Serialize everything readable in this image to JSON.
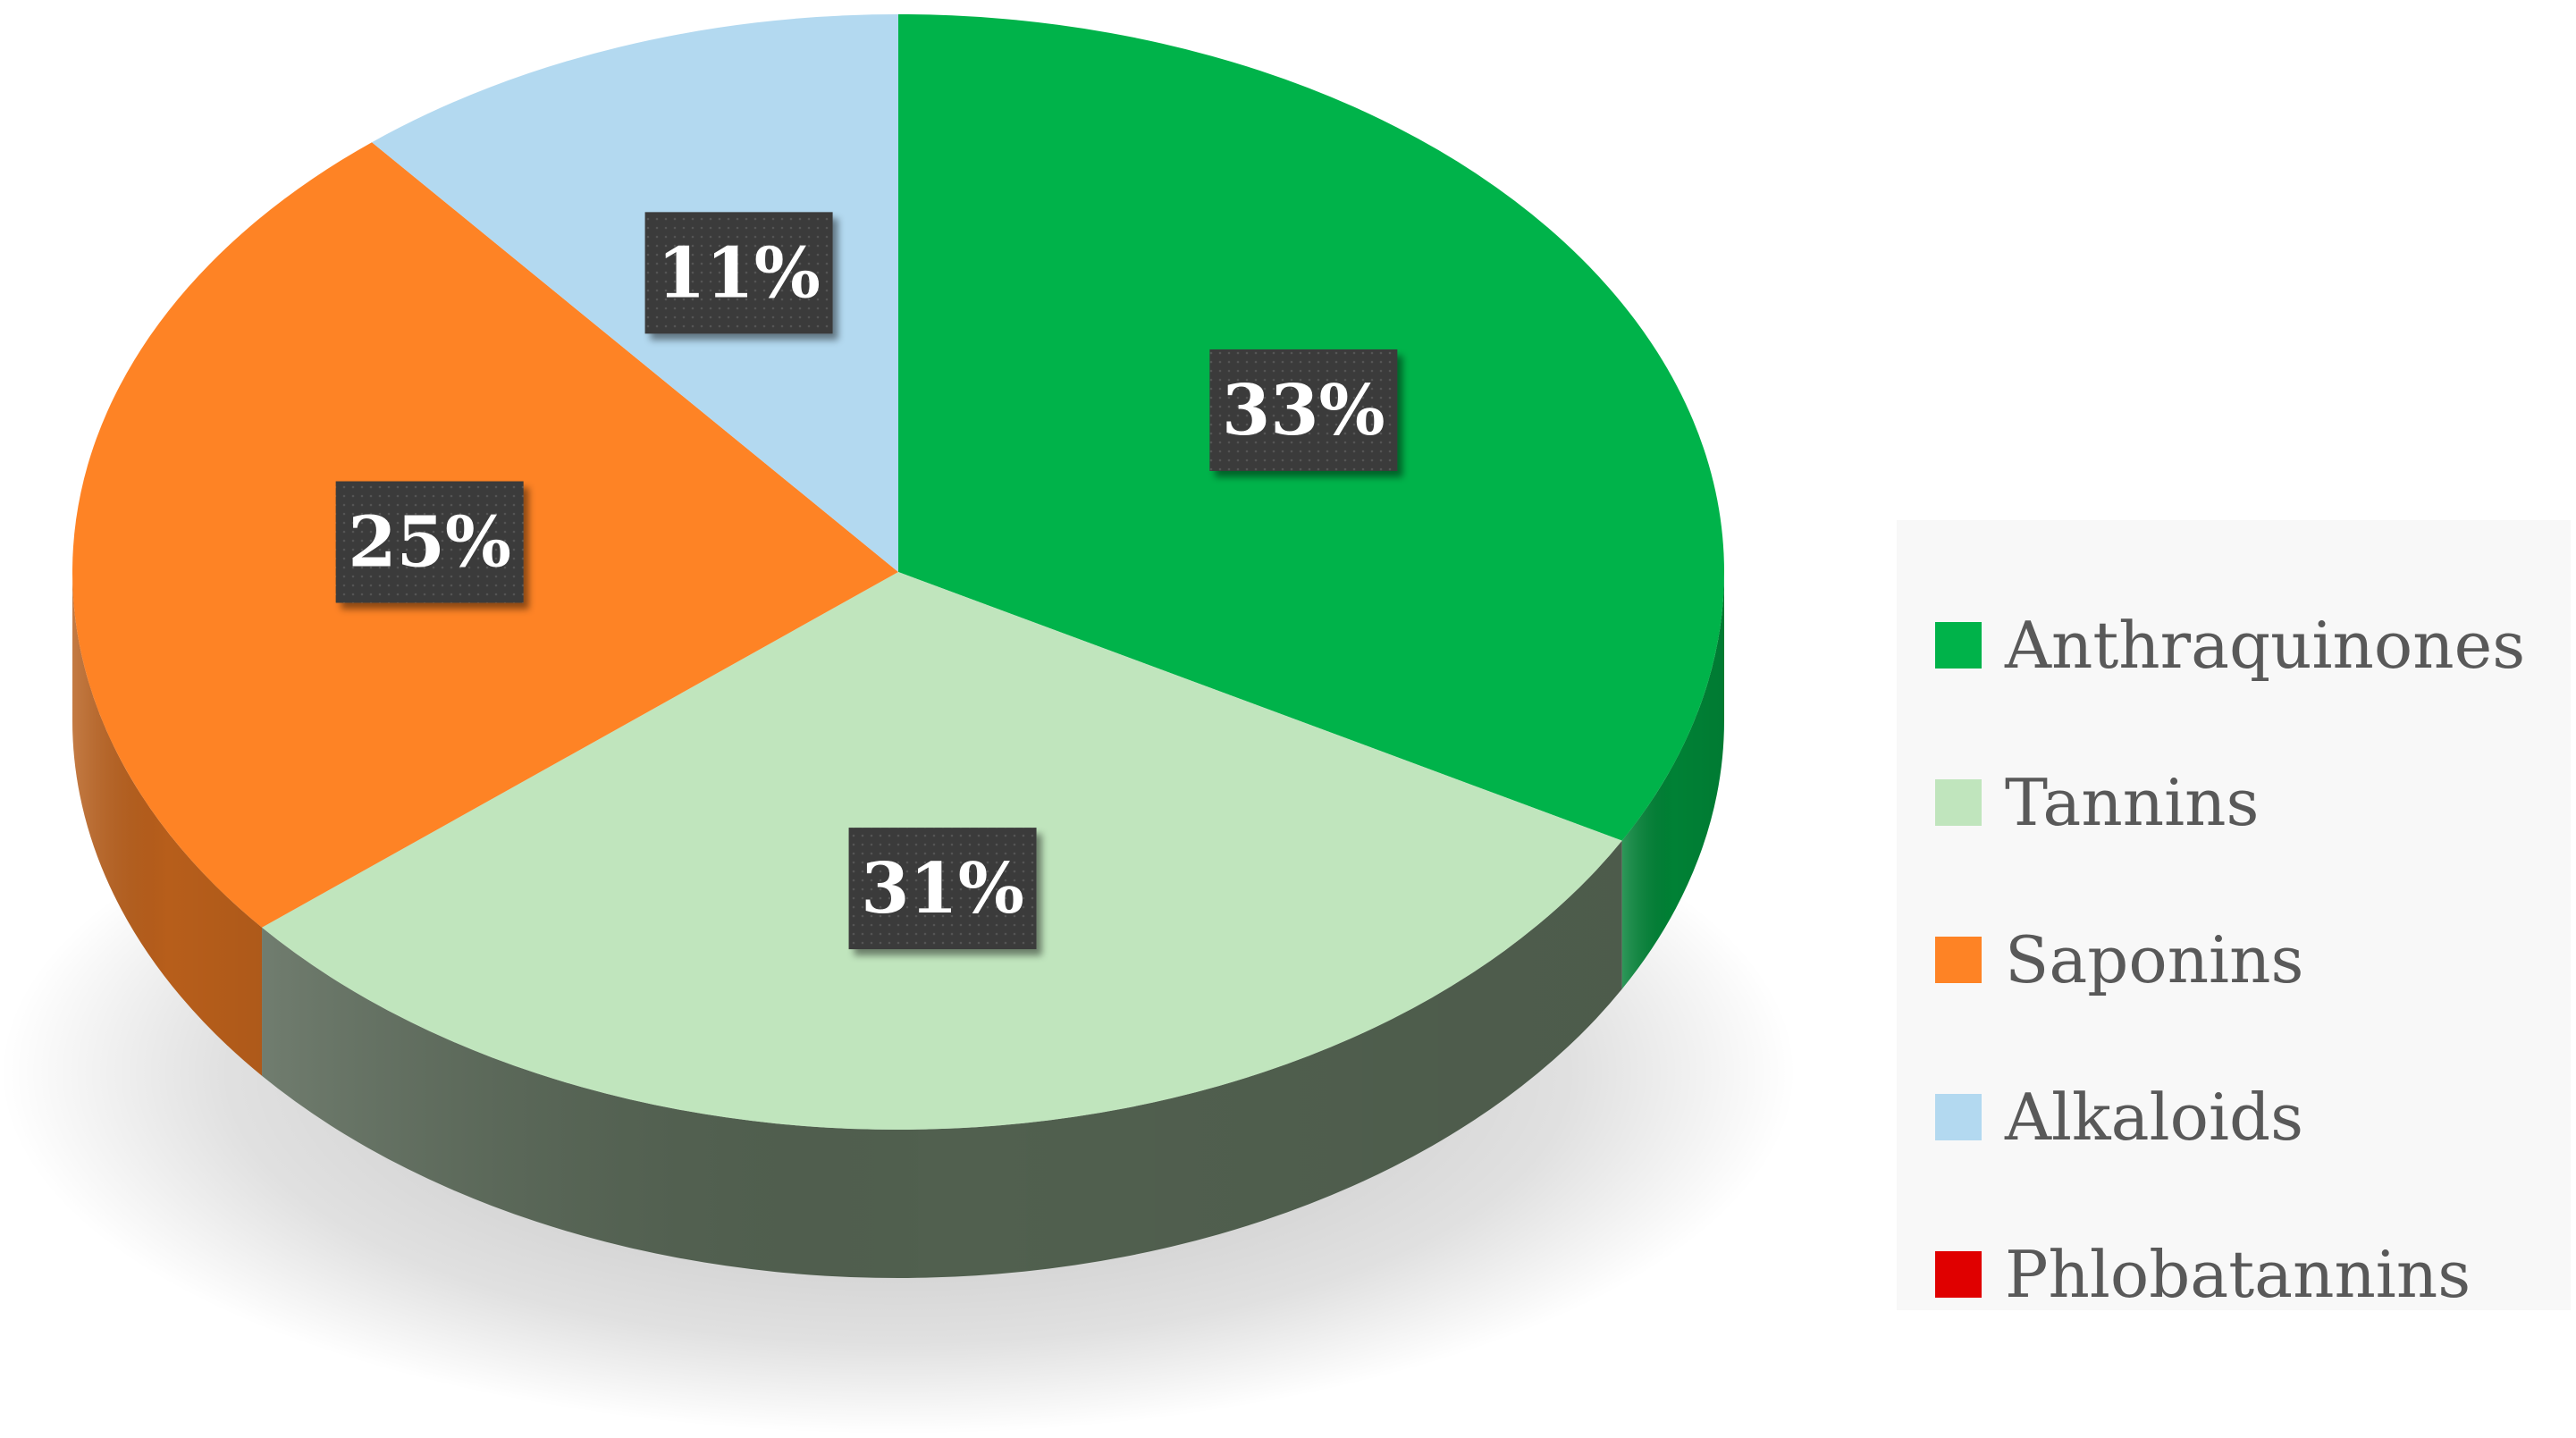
{
  "chart_data": {
    "type": "pie",
    "title": "",
    "categories": [
      "Anthraquinones",
      "Tannins",
      "Saponins",
      "Alkaloids",
      "Phlobatannins"
    ],
    "values": [
      33,
      31,
      25,
      11,
      0
    ],
    "data_labels": [
      "33%",
      "31%",
      "25%",
      "11%",
      ""
    ],
    "colors": [
      "#00b34a",
      "#c0e5bd",
      "#fe8325",
      "#b3d9f0",
      "#e00000"
    ],
    "style": "3d",
    "legend_position": "right"
  }
}
